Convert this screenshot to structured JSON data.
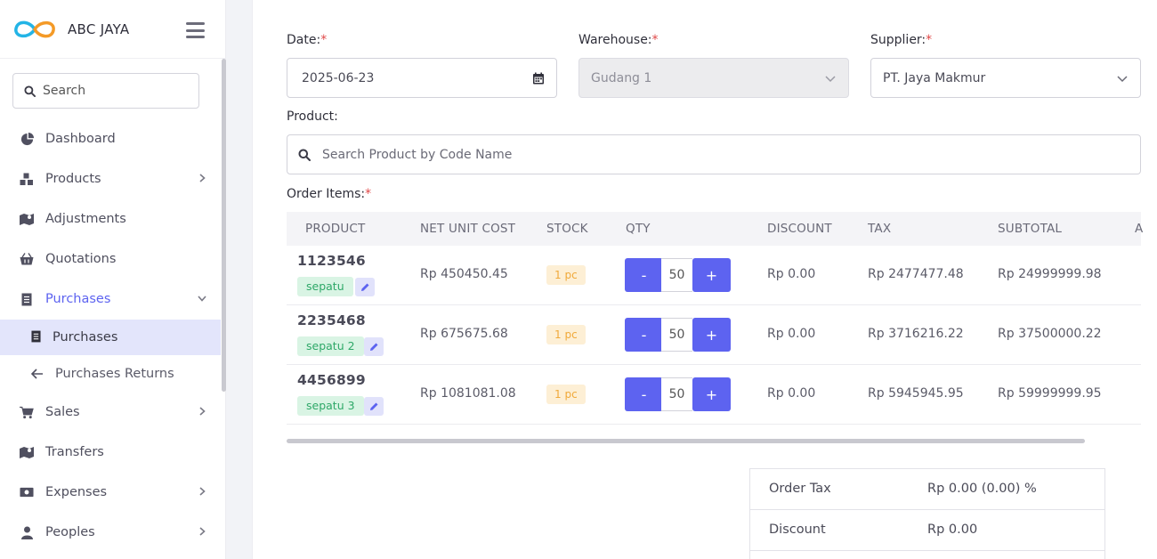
{
  "brand": {
    "name": "ABC JAYA"
  },
  "sidebar": {
    "search_placeholder": "Search",
    "items": [
      {
        "label": "Dashboard",
        "icon": "pie-chart-icon",
        "has_children": false
      },
      {
        "label": "Products",
        "icon": "boxes-icon",
        "has_children": true
      },
      {
        "label": "Adjustments",
        "icon": "map-icon",
        "has_children": false
      },
      {
        "label": "Quotations",
        "icon": "basket-icon",
        "has_children": false
      },
      {
        "label": "Purchases",
        "icon": "receipt-icon",
        "has_children": true,
        "expanded": true,
        "active": true
      },
      {
        "label": "Sales",
        "icon": "cart-icon",
        "has_children": true
      },
      {
        "label": "Transfers",
        "icon": "map-icon",
        "has_children": false
      },
      {
        "label": "Expenses",
        "icon": "money-icon",
        "has_children": true
      },
      {
        "label": "Peoples",
        "icon": "user-icon",
        "has_children": true
      }
    ],
    "subitems": [
      {
        "label": "Purchases",
        "icon": "receipt-icon",
        "selected": true
      },
      {
        "label": "Purchases Returns",
        "icon": "arrow-left-icon",
        "selected": false
      }
    ]
  },
  "form": {
    "date_label": "Date:",
    "date_value": "2025-06-23",
    "warehouse_label": "Warehouse:",
    "warehouse_value": "Gudang 1",
    "supplier_label": "Supplier:",
    "supplier_value": "PT. Jaya Makmur",
    "product_label": "Product:",
    "product_placeholder": "Search Product by Code Name",
    "order_items_label": "Order Items:",
    "required_mark": "*"
  },
  "table": {
    "headers": [
      "PRODUCT",
      "NET UNIT COST",
      "STOCK",
      "QTY",
      "DISCOUNT",
      "TAX",
      "SUBTOTAL",
      "A"
    ],
    "rows": [
      {
        "code": "1123546",
        "name": "sepatu",
        "cost": "Rp 450450.45",
        "stock": "1 pc",
        "qty": "50",
        "discount": "Rp 0.00",
        "tax": "Rp 2477477.48",
        "subtotal": "Rp 24999999.98"
      },
      {
        "code": "2235468",
        "name": "sepatu 2",
        "cost": "Rp 675675.68",
        "stock": "1 pc",
        "qty": "50",
        "discount": "Rp 0.00",
        "tax": "Rp 3716216.22",
        "subtotal": "Rp 37500000.22"
      },
      {
        "code": "4456899",
        "name": "sepatu 3",
        "cost": "Rp 1081081.08",
        "stock": "1 pc",
        "qty": "50",
        "discount": "Rp 0.00",
        "tax": "Rp 5945945.95",
        "subtotal": "Rp 59999999.95"
      }
    ],
    "minus_label": "-",
    "plus_label": "+"
  },
  "summary": {
    "rows": [
      {
        "label": "Order Tax",
        "value": "Rp 0.00 (0.00) %"
      },
      {
        "label": "Discount",
        "value": "Rp 0.00"
      }
    ]
  },
  "colors": {
    "accent": "#5d63f0",
    "tag_green_bg": "#d9f4e4",
    "tag_green_text": "#2ea868",
    "stock_bg": "#fdefd5",
    "stock_text": "#f0a93a",
    "required": "#e04848"
  }
}
